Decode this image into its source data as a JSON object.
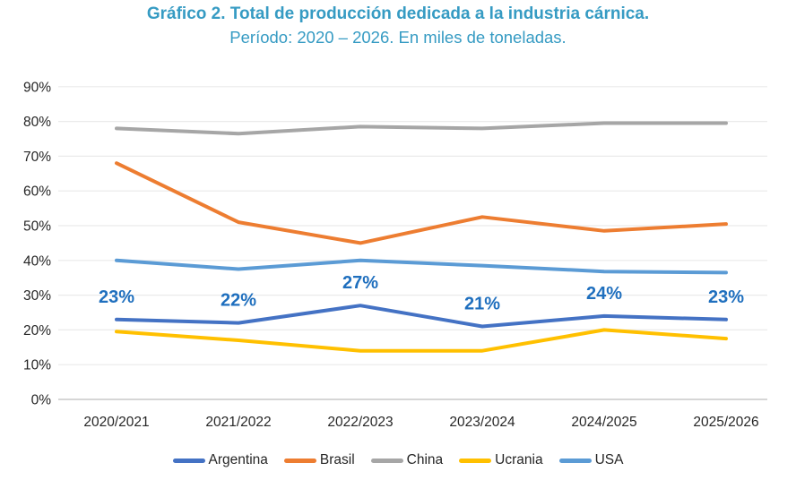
{
  "chart_data": {
    "type": "line",
    "title": "Gráfico 2. Total de producción dedicada a la industria cárnica.",
    "subtitle": "Período: 2020 – 2026. En miles de toneladas.",
    "title_color": "#369BC3",
    "annotation_color": "#1F6FBE",
    "axis_text_color": "#262626",
    "gridline_color": "#EAEAEA",
    "axis_line_color": "#C8C8C8",
    "categories": [
      "2020/2021",
      "2021/2022",
      "2022/2023",
      "2023/2024",
      "2024/2025",
      "2025/2026"
    ],
    "ylim": [
      0,
      90
    ],
    "y_tick_step": 10,
    "y_tick_suffix": "%",
    "grid": true,
    "legend_position": "bottom",
    "series": [
      {
        "name": "Argentina",
        "color": "#4472C4",
        "values": [
          23,
          22,
          27,
          21,
          24,
          23
        ],
        "point_labels": [
          "23%",
          "22%",
          "27%",
          "21%",
          "24%",
          "23%"
        ]
      },
      {
        "name": "Brasil",
        "color": "#ED7D31",
        "values": [
          68,
          51,
          45,
          52.5,
          48.5,
          50.5
        ]
      },
      {
        "name": "China",
        "color": "#A6A6A6",
        "values": [
          78,
          76.5,
          78.5,
          78,
          79.5,
          79.5
        ]
      },
      {
        "name": "Ucrania",
        "color": "#FFC000",
        "values": [
          19.5,
          17,
          14,
          14,
          20,
          17.5
        ]
      },
      {
        "name": "USA",
        "color": "#5B9BD5",
        "values": [
          40,
          37.5,
          40,
          38.5,
          36.8,
          36.5
        ]
      }
    ]
  }
}
